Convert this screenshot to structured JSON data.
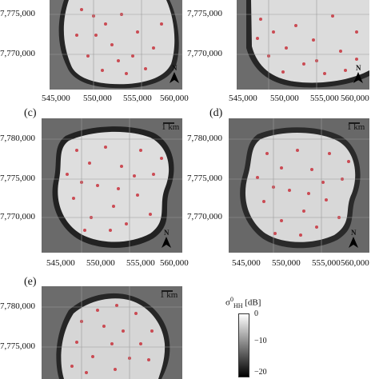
{
  "colorbar": {
    "title": "σ",
    "superscript": "0",
    "subscript": "HH",
    "unit": "[dB]",
    "ticks": [
      "0",
      "−10",
      "−20"
    ]
  },
  "panels": [
    {
      "id": "a",
      "label": "",
      "y_ticks": [
        "7,775,000",
        "7,770,000"
      ],
      "x_ticks": [
        "545,000",
        "550,000",
        "555,000",
        "560,000"
      ],
      "scalebar": "",
      "north": "N"
    },
    {
      "id": "b",
      "label": "",
      "y_ticks": [
        "7,775,000",
        "7,770,000"
      ],
      "x_ticks": [
        "545,000",
        "550,000",
        "555,000",
        "560,000"
      ],
      "scalebar": "",
      "north": "N"
    },
    {
      "id": "c",
      "label": "(c)",
      "y_ticks": [
        "7,780,000",
        "7,775,000",
        "7,770,000"
      ],
      "x_ticks": [
        "545,000",
        "550,000",
        "555,000",
        "560,000"
      ],
      "scalebar": "1 km",
      "north": "N"
    },
    {
      "id": "d",
      "label": "(d)",
      "y_ticks": [
        "7,780,000",
        "7,775,000",
        "7,770,000"
      ],
      "x_ticks": [
        "545,000",
        "550,000",
        "555,000",
        "560,000"
      ],
      "scalebar": "1 km",
      "north": "N"
    },
    {
      "id": "e",
      "label": "(e)",
      "y_ticks": [
        "7,780,000",
        "7,775,000"
      ],
      "x_ticks": [],
      "scalebar": "1 km",
      "north": ""
    }
  ],
  "colors": {
    "marker": "#c8323c",
    "lake": "#dcdcdc",
    "land": "#6e6e6e",
    "shore": "#262626"
  }
}
